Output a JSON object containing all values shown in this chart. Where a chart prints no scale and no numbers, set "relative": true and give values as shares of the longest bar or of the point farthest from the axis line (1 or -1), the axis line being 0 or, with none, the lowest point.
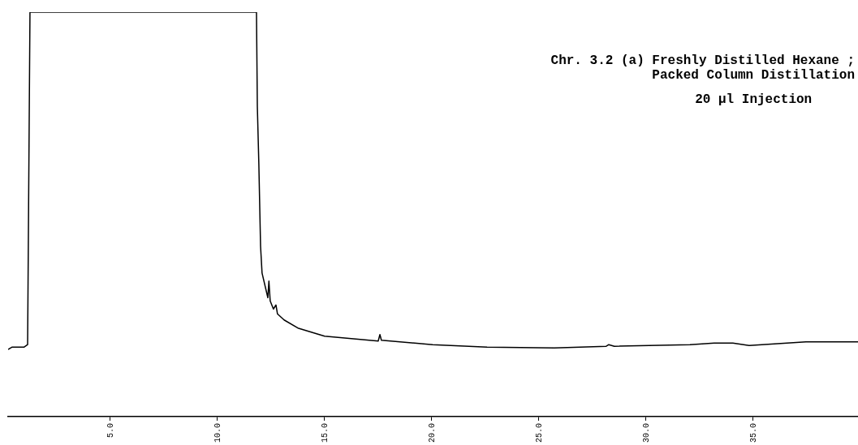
{
  "chart_data": {
    "type": "line",
    "relative": true,
    "annotations": [
      "Chr. 3.2 (a) Freshly Distilled Hexane ;",
      "Packed Column Distillation",
      "20 µl Injection"
    ],
    "xlim": [
      0.23,
      39.89
    ],
    "xticks": [
      {
        "value": 5,
        "label": "5.0"
      },
      {
        "value": 10,
        "label": "10.0"
      },
      {
        "value": 15,
        "label": "15.0"
      },
      {
        "value": 20,
        "label": "20.0"
      },
      {
        "value": 25,
        "label": "25.0"
      },
      {
        "value": 30,
        "label": "30.0"
      },
      {
        "value": 35,
        "label": "35.0"
      }
    ],
    "grid": false,
    "legend": false,
    "series": [
      {
        "color": "#000000",
        "x": [
          0.23,
          0.42,
          0.98,
          1.14,
          1.25,
          11.82,
          11.86,
          11.93,
          12.01,
          12.08,
          12.35,
          12.4,
          12.46,
          12.61,
          12.73,
          12.8,
          13.11,
          13.75,
          15.0,
          16.25,
          17.5,
          17.58,
          17.65,
          20.04,
          22.58,
          25.72,
          28.14,
          28.26,
          28.52,
          32.05,
          33.18,
          34.05,
          34.81,
          37.46,
          39.89
        ],
        "values": [
          0.166,
          0.172,
          0.172,
          0.178,
          1.0,
          1.0,
          0.767,
          0.625,
          0.422,
          0.355,
          0.294,
          0.335,
          0.286,
          0.266,
          0.276,
          0.254,
          0.239,
          0.219,
          0.199,
          0.193,
          0.187,
          0.203,
          0.189,
          0.178,
          0.172,
          0.17,
          0.174,
          0.178,
          0.174,
          0.178,
          0.182,
          0.182,
          0.176,
          0.185,
          0.185
        ]
      }
    ]
  }
}
